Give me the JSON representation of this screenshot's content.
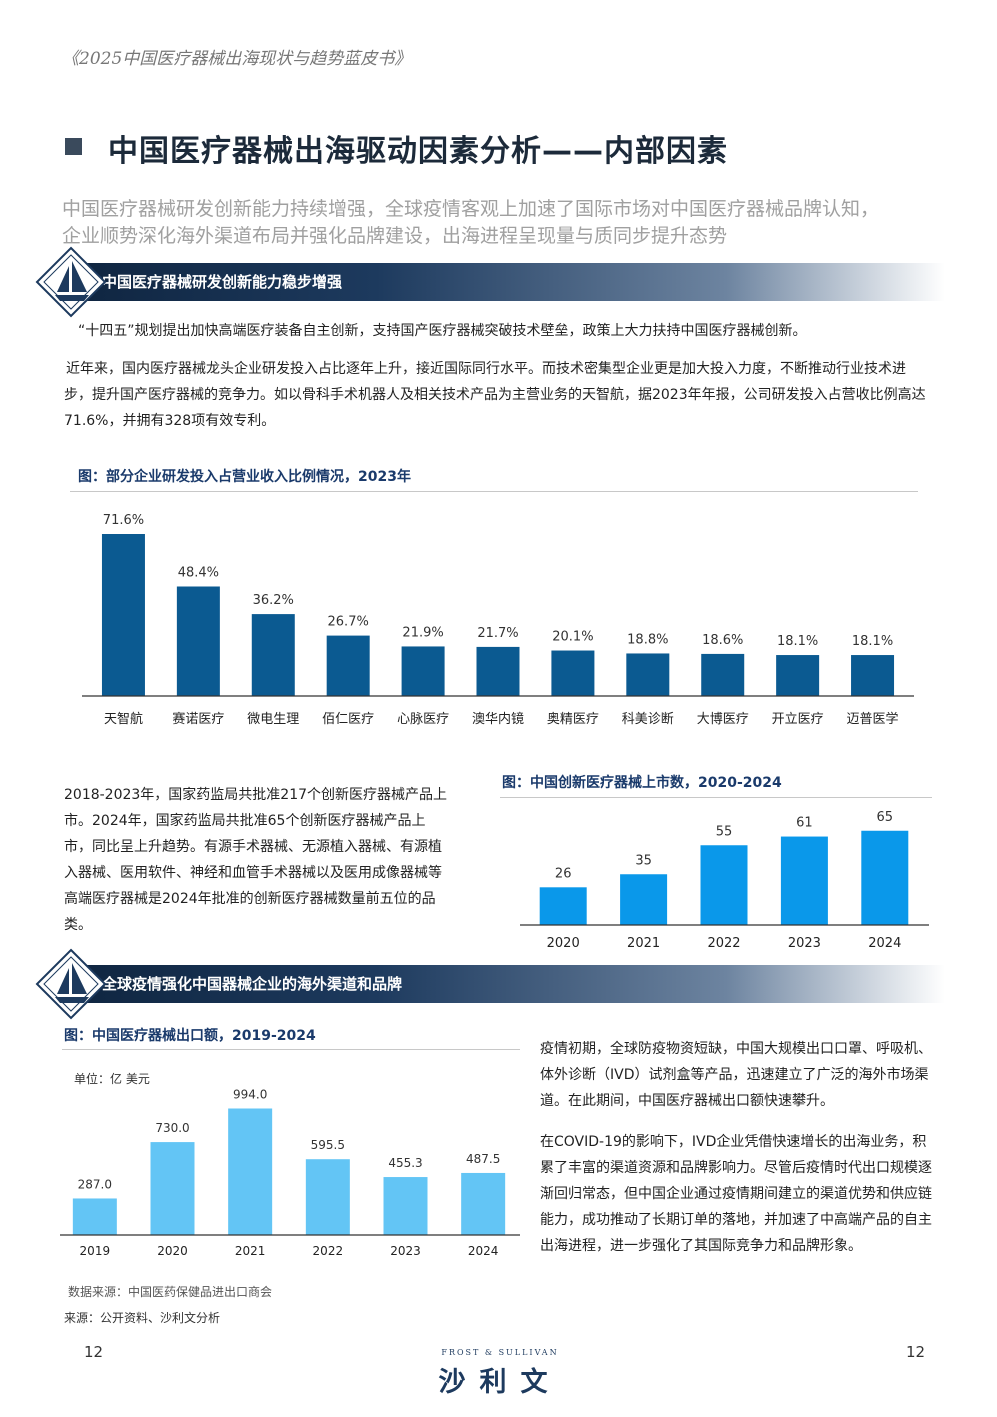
{
  "header": {
    "title": "《2025中国医疗器械出海现状与趋势蓝皮书》"
  },
  "page_title": "中国医疗器械出海驱动因素分析——内部因素",
  "subtitle": {
    "line1": "中国医疗器械研发创新能力持续增强，全球疫情客观上加速了国际市场对中国医疗器械品牌认知，",
    "line2": "企业顺势深化海外渠道布局并强化品牌建设，出海进程呈现量与质同步提升态势"
  },
  "section1": {
    "banner": "中国医疗器械研发创新能力稳步增强",
    "para1": "“十四五”规划提出加快高端医疗装备自主创新，支持国产医疗器械突破技术壁垒，政策上大力扶持中国医疗器械创新。",
    "para2": "近年来，国内医疗器械龙头企业研发投入占比逐年上升，接近国际同行水平。而技术密集型企业更是加大投入力度，不断推动行业技术进步，提升国产医疗器械的竞争力。如以骨科手术机器人及相关技术产品为主营业务的天智航，据2023年年报，公司研发投入占营收比例高达71.6%，并拥有328项有效专利。",
    "fig1_title": "图：部分企业研发投入占营业收入比例情况，2023年",
    "para3": "2018-2023年，国家药监局共批准217个创新医疗器械产品上市。2024年，国家药监局共批准65个创新医疗器械产品上市，同比呈上升趋势。有源手术器械、无源植入器械、有源植入器械、医用软件、神经和血管手术器械以及医用成像器械等高端医疗器械是2024年批准的创新医疗器械数量前五位的品类。",
    "fig2_title": "图：中国创新医疗器械上市数，2020-2024"
  },
  "section2": {
    "banner": "全球疫情强化中国器械企业的海外渠道和品牌",
    "fig3_title": "图：中国医疗器械出口额，2019-2024",
    "unit": "单位：亿 美元",
    "data_source": "数据来源：中国医药保健品进出口商会",
    "para1": "疫情初期，全球防疫物资短缺，中国大规模出口口罩、呼吸机、体外诊断（IVD）试剂盒等产品，迅速建立了广泛的海外市场渠道。在此期间，中国医疗器械出口额快速攀升。",
    "para2": "在COVID-19的影响下，IVD企业凭借快速增长的出海业务，积累了丰富的渠道资源和品牌影响力。尽管后疫情时代出口规模逐渐回归常态，但中国企业通过疫情期间建立的渠道优势和供应链能力，成功推动了长期订单的落地，并加速了中高端产品的自主出海进程，进一步强化了其国际竞争力和品牌形象。"
  },
  "source": "来源：公开资料、沙利文分析",
  "footer": {
    "page_left": "12",
    "page_right": "12",
    "logo_en": "FROST & SULLIVAN",
    "logo_cn": "沙利文"
  },
  "colors": {
    "bar_dark": "#0b5a91",
    "bar_mid": "#0a98ea",
    "bar_light": "#63c5f5",
    "banner_dark": "#0f2540",
    "title": "#1c2a3a"
  },
  "chart_data": [
    {
      "type": "bar",
      "categories": [
        "天智航",
        "赛诺医疗",
        "微电生理",
        "佰仁医疗",
        "心脉医疗",
        "澳华内镜",
        "奥精医疗",
        "科美诊断",
        "大博医疗",
        "开立医疗",
        "迈普医学"
      ],
      "values": [
        71.6,
        48.4,
        36.2,
        26.7,
        21.9,
        21.7,
        20.1,
        18.8,
        18.6,
        18.1,
        18.1
      ],
      "labels": [
        "71.6%",
        "48.4%",
        "36.2%",
        "26.7%",
        "21.9%",
        "21.7%",
        "20.1%",
        "18.8%",
        "18.6%",
        "18.1%",
        "18.1%"
      ],
      "title": "图：部分企业研发投入占营业收入比例情况，2023年",
      "ylim": [
        0,
        80
      ]
    },
    {
      "type": "bar",
      "categories": [
        "2020",
        "2021",
        "2022",
        "2023",
        "2024"
      ],
      "values": [
        26,
        35,
        55,
        61,
        65
      ],
      "labels": [
        "26",
        "35",
        "55",
        "61",
        "65"
      ],
      "title": "图：中国创新医疗器械上市数，2020-2024",
      "ylim": [
        0,
        80
      ]
    },
    {
      "type": "bar",
      "categories": [
        "2019",
        "2020",
        "2021",
        "2022",
        "2023",
        "2024"
      ],
      "values": [
        287.0,
        730.0,
        994.0,
        595.5,
        455.3,
        487.5
      ],
      "labels": [
        "287.0",
        "730.0",
        "994.0",
        "595.5",
        "455.3",
        "487.5"
      ],
      "title": "图：中国医疗器械出口额，2019-2024",
      "ylim": [
        0,
        1100
      ]
    }
  ]
}
